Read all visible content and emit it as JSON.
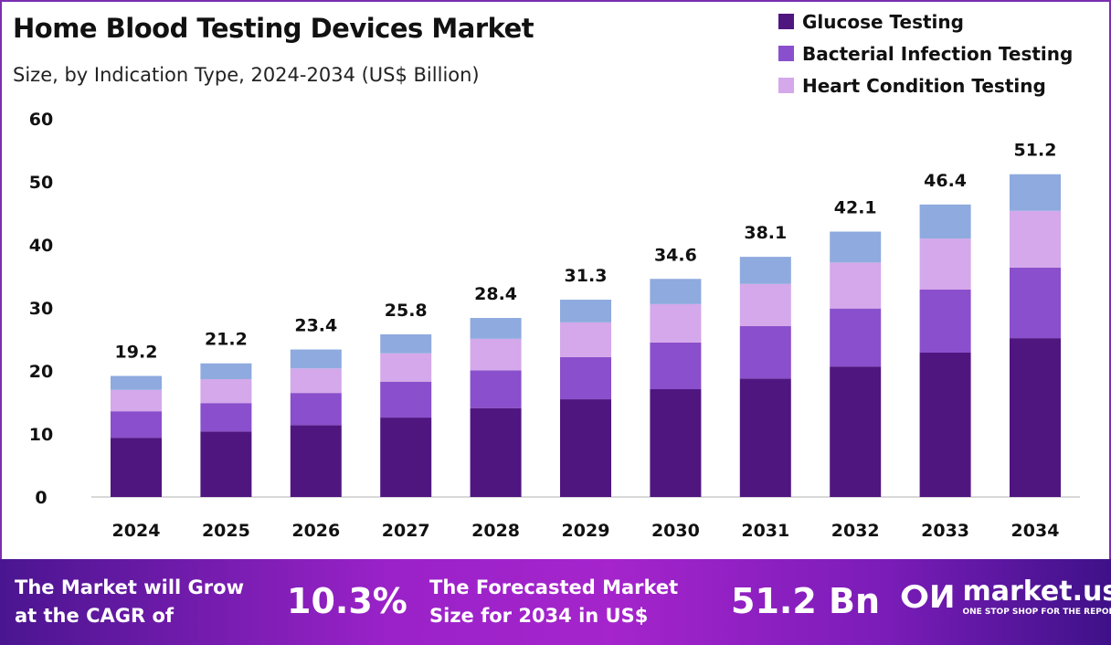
{
  "chart_data": {
    "type": "bar",
    "stacked": true,
    "title": "Home Blood Testing Devices Market",
    "subtitle": "Size, by Indication Type, 2024-2034 (US$ Billion)",
    "categories": [
      "2024",
      "2025",
      "2026",
      "2027",
      "2028",
      "2029",
      "2030",
      "2031",
      "2032",
      "2033",
      "2034"
    ],
    "series": [
      {
        "name": "Glucose Testing",
        "color": "#4f1680",
        "values": [
          9.4,
          10.4,
          11.4,
          12.6,
          14.1,
          15.5,
          17.1,
          18.8,
          20.7,
          22.9,
          25.2
        ]
      },
      {
        "name": "Bacterial Infection Testing",
        "color": "#8a4fcc",
        "values": [
          4.2,
          4.5,
          5.1,
          5.7,
          6.0,
          6.7,
          7.4,
          8.3,
          9.2,
          10.0,
          11.2
        ]
      },
      {
        "name": "Heart Condition Testing",
        "color": "#d4a8ea",
        "values": [
          3.4,
          3.8,
          3.9,
          4.5,
          5.0,
          5.5,
          6.1,
          6.7,
          7.3,
          8.1,
          9.0
        ]
      },
      {
        "color": "#8eaade",
        "values": [
          2.2,
          2.5,
          3.0,
          3.0,
          3.3,
          3.6,
          4.0,
          4.3,
          4.9,
          5.4,
          5.8
        ]
      }
    ],
    "totals": [
      "19.2",
      "21.2",
      "23.4",
      "25.8",
      "28.4",
      "31.3",
      "34.6",
      "38.1",
      "42.1",
      "46.4",
      "51.2"
    ],
    "ylim": [
      0,
      60
    ],
    "yticks": [
      "0",
      "10",
      "20",
      "30",
      "40",
      "50",
      "60"
    ],
    "xlabel": "",
    "ylabel": "",
    "grid": false,
    "legend_position": "top-right"
  },
  "footer": {
    "cagr_label_line1": "The Market will Grow",
    "cagr_label_line2": "at the CAGR of",
    "cagr_value": "10.3%",
    "forecast_label_line1": "The Forecasted Market",
    "forecast_label_line2": "Size for 2034 in US$",
    "forecast_value": "51.2 Bn",
    "brand": "market.us",
    "brand_tagline": "ONE STOP SHOP FOR THE REPORTS"
  }
}
